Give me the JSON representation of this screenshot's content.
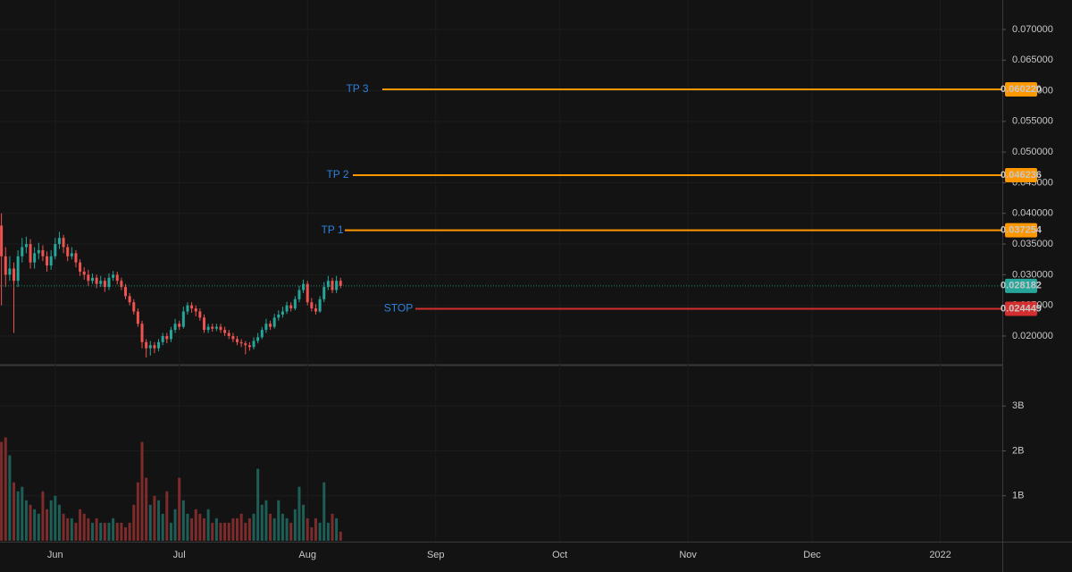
{
  "chart_data": {
    "type": "candlestick",
    "x": [
      0,
      1,
      2,
      3,
      4,
      5,
      6,
      7,
      8,
      9,
      10,
      11,
      12,
      13,
      14,
      15,
      16,
      17,
      18,
      19,
      20,
      21,
      22,
      23,
      24,
      25,
      26,
      27,
      28,
      29,
      30,
      31,
      32,
      33,
      34,
      35,
      36,
      37,
      38,
      39,
      40,
      41,
      42,
      43,
      44,
      45,
      46,
      47,
      48,
      49,
      50,
      51,
      52,
      53,
      54,
      55,
      56,
      57,
      58,
      59,
      60,
      61,
      62,
      63,
      64,
      65,
      66,
      67,
      68,
      69,
      70,
      71,
      72,
      73,
      74,
      75,
      76,
      77,
      78,
      79,
      80,
      81,
      82,
      83
    ],
    "open": [
      0.042,
      0.038,
      0.033,
      0.03,
      0.031,
      0.029,
      0.033,
      0.0345,
      0.035,
      0.032,
      0.0335,
      0.034,
      0.033,
      0.0315,
      0.033,
      0.035,
      0.036,
      0.0345,
      0.033,
      0.0335,
      0.032,
      0.0305,
      0.03,
      0.029,
      0.0295,
      0.0285,
      0.029,
      0.028,
      0.0295,
      0.03,
      0.029,
      0.028,
      0.0265,
      0.0255,
      0.024,
      0.022,
      0.019,
      0.018,
      0.0185,
      0.018,
      0.019,
      0.02,
      0.0195,
      0.021,
      0.022,
      0.0215,
      0.024,
      0.025,
      0.0245,
      0.024,
      0.023,
      0.021,
      0.0215,
      0.0212,
      0.0215,
      0.021,
      0.0205,
      0.02,
      0.0195,
      0.019,
      0.0188,
      0.0185,
      0.0182,
      0.0192,
      0.0198,
      0.021,
      0.022,
      0.0215,
      0.023,
      0.0235,
      0.024,
      0.025,
      0.0245,
      0.026,
      0.0275,
      0.0285,
      0.0255,
      0.0245,
      0.024,
      0.026,
      0.028,
      0.029,
      0.0275,
      0.029
    ],
    "high": [
      0.0465,
      0.04,
      0.0345,
      0.033,
      0.032,
      0.034,
      0.036,
      0.0362,
      0.0358,
      0.0345,
      0.0352,
      0.0348,
      0.0338,
      0.034,
      0.036,
      0.037,
      0.0365,
      0.035,
      0.0345,
      0.034,
      0.0325,
      0.0312,
      0.0308,
      0.0302,
      0.03,
      0.0298,
      0.0295,
      0.0302,
      0.0306,
      0.0305,
      0.0295,
      0.0285,
      0.027,
      0.026,
      0.0245,
      0.0225,
      0.0195,
      0.0192,
      0.019,
      0.0195,
      0.0205,
      0.0205,
      0.0215,
      0.0228,
      0.0225,
      0.0248,
      0.0255,
      0.0255,
      0.025,
      0.0245,
      0.0235,
      0.022,
      0.022,
      0.022,
      0.022,
      0.0215,
      0.021,
      0.0205,
      0.02,
      0.0195,
      0.0192,
      0.019,
      0.0198,
      0.0205,
      0.0215,
      0.0228,
      0.0225,
      0.0236,
      0.0242,
      0.0248,
      0.0256,
      0.0255,
      0.0265,
      0.0282,
      0.0292,
      0.029,
      0.0262,
      0.0252,
      0.0265,
      0.0288,
      0.0298,
      0.0295,
      0.0298,
      0.0295
    ],
    "low": [
      0.036,
      0.025,
      0.028,
      0.029,
      0.0205,
      0.028,
      0.032,
      0.0335,
      0.031,
      0.031,
      0.0325,
      0.0322,
      0.0305,
      0.0308,
      0.0325,
      0.0342,
      0.0335,
      0.0322,
      0.0325,
      0.0312,
      0.0298,
      0.0292,
      0.0282,
      0.0285,
      0.0278,
      0.028,
      0.0272,
      0.0275,
      0.029,
      0.0284,
      0.0275,
      0.026,
      0.025,
      0.0235,
      0.0215,
      0.018,
      0.0165,
      0.0168,
      0.0172,
      0.0175,
      0.0185,
      0.0188,
      0.019,
      0.0205,
      0.021,
      0.0212,
      0.0235,
      0.0238,
      0.0232,
      0.0225,
      0.0205,
      0.0205,
      0.0207,
      0.0208,
      0.0205,
      0.02,
      0.0195,
      0.019,
      0.0185,
      0.0182,
      0.017,
      0.0176,
      0.0178,
      0.0188,
      0.0195,
      0.0205,
      0.021,
      0.0212,
      0.0225,
      0.023,
      0.0236,
      0.024,
      0.0242,
      0.0255,
      0.027,
      0.025,
      0.024,
      0.0235,
      0.0238,
      0.0255,
      0.0275,
      0.027,
      0.027,
      0.0278
    ],
    "close": [
      0.038,
      0.033,
      0.03,
      0.031,
      0.029,
      0.033,
      0.0345,
      0.035,
      0.032,
      0.0335,
      0.034,
      0.033,
      0.0315,
      0.033,
      0.035,
      0.036,
      0.0345,
      0.033,
      0.0335,
      0.032,
      0.0305,
      0.03,
      0.029,
      0.0295,
      0.0285,
      0.029,
      0.028,
      0.0295,
      0.03,
      0.029,
      0.028,
      0.0265,
      0.0255,
      0.024,
      0.022,
      0.019,
      0.018,
      0.0185,
      0.018,
      0.019,
      0.02,
      0.0195,
      0.021,
      0.022,
      0.0215,
      0.024,
      0.025,
      0.0245,
      0.024,
      0.023,
      0.021,
      0.0215,
      0.0212,
      0.0215,
      0.021,
      0.0205,
      0.02,
      0.0195,
      0.019,
      0.0188,
      0.0185,
      0.0182,
      0.0192,
      0.0198,
      0.021,
      0.022,
      0.0215,
      0.023,
      0.0235,
      0.024,
      0.025,
      0.0245,
      0.026,
      0.0275,
      0.0285,
      0.0255,
      0.0245,
      0.024,
      0.026,
      0.028,
      0.029,
      0.0275,
      0.029,
      0.028182
    ],
    "up_color": "#26a69a",
    "down_color": "#ef5350",
    "xlim": [
      0.65,
      243
    ],
    "xticks": [
      {
        "value": 14,
        "label": "Jun"
      },
      {
        "value": 44,
        "label": "Jul"
      },
      {
        "value": 75,
        "label": "Aug"
      },
      {
        "value": 106,
        "label": "Sep"
      },
      {
        "value": 136,
        "label": "Oct"
      },
      {
        "value": 167,
        "label": "Nov"
      },
      {
        "value": 197,
        "label": "Dec"
      },
      {
        "value": 228,
        "label": "2022"
      }
    ],
    "ylim": [
      0.01533,
      0.0748
    ],
    "yticks": [
      {
        "value": 0.02,
        "label": "0.020000"
      },
      {
        "value": 0.025,
        "label": "0.025000"
      },
      {
        "value": 0.03,
        "label": "0.030000"
      },
      {
        "value": 0.035,
        "label": "0.035000"
      },
      {
        "value": 0.04,
        "label": "0.040000"
      },
      {
        "value": 0.045,
        "label": "0.045000"
      },
      {
        "value": 0.05,
        "label": "0.050000"
      },
      {
        "value": 0.055,
        "label": "0.055000"
      },
      {
        "value": 0.06,
        "label": "0.060000"
      },
      {
        "value": 0.065,
        "label": "0.065000"
      },
      {
        "value": 0.07,
        "label": "0.070000"
      }
    ],
    "grid": true,
    "levels": [
      {
        "name": "TP 3",
        "value": 0.06022,
        "label": "0.060220",
        "color": "#ff9800"
      },
      {
        "name": "TP 2",
        "value": 0.046236,
        "label": "0.046236",
        "color": "#ff9800"
      },
      {
        "name": "TP 1",
        "value": 0.037254,
        "label": "0.037254",
        "color": "#ff9800"
      },
      {
        "name": "STOP",
        "value": 0.024449,
        "label": "0.024449",
        "color": "#d32f2f"
      }
    ],
    "last_price": {
      "value": 0.028182,
      "label": "0.028182",
      "color": "#26a69a"
    },
    "volume": {
      "values": [
        2.35,
        2.2,
        2.3,
        1.9,
        1.3,
        1.1,
        1.2,
        0.9,
        0.8,
        0.7,
        0.6,
        1.1,
        0.7,
        0.9,
        1.0,
        0.8,
        0.6,
        0.5,
        0.5,
        0.4,
        0.7,
        0.6,
        0.5,
        0.4,
        0.5,
        0.4,
        0.4,
        0.4,
        0.5,
        0.4,
        0.4,
        0.3,
        0.4,
        0.8,
        1.3,
        2.2,
        1.4,
        0.8,
        1.0,
        0.9,
        0.6,
        1.1,
        0.4,
        0.7,
        1.4,
        0.9,
        0.6,
        0.5,
        0.7,
        0.6,
        0.5,
        0.7,
        0.4,
        0.5,
        0.4,
        0.4,
        0.4,
        0.5,
        0.5,
        0.6,
        0.4,
        0.5,
        0.6,
        1.6,
        0.8,
        0.9,
        0.6,
        0.5,
        0.9,
        0.6,
        0.5,
        0.4,
        0.7,
        1.2,
        0.8,
        0.5,
        0.3,
        0.5,
        0.4,
        1.3,
        0.4,
        0.6,
        0.5,
        0.2
      ],
      "up_color": "#1d5f57",
      "down_color": "#7e2b2b",
      "ylim": [
        0,
        3.9
      ],
      "yticks": [
        {
          "value": 1,
          "label": "1B"
        },
        {
          "value": 2,
          "label": "2B"
        },
        {
          "value": 3,
          "label": "3B"
        }
      ]
    }
  }
}
